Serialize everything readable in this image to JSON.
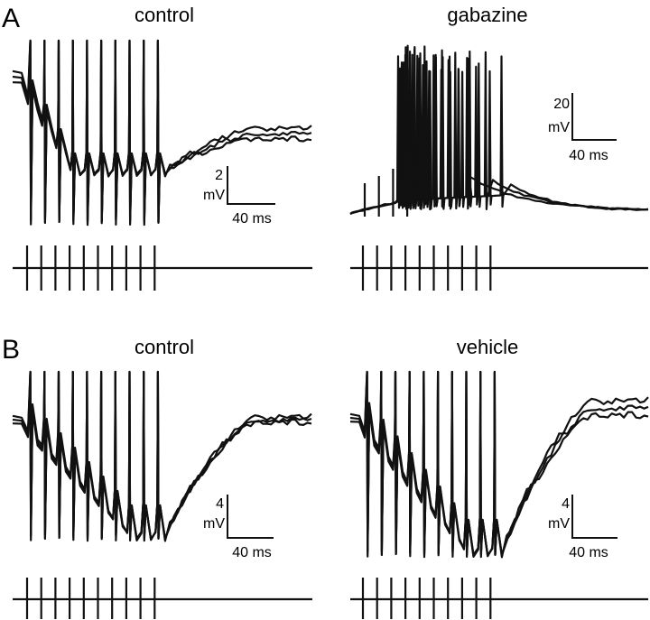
{
  "panels": [
    {
      "letter": "A",
      "conditions": [
        {
          "title": "control",
          "scale_v": "2",
          "scale_unit": "mV",
          "scale_t": "40 ms"
        },
        {
          "title": "gabazine",
          "scale_v": "20",
          "scale_unit": "mV",
          "scale_t": "40 ms"
        }
      ]
    },
    {
      "letter": "B",
      "conditions": [
        {
          "title": "control",
          "scale_v": "4",
          "scale_unit": "mV",
          "scale_t": "40 ms"
        },
        {
          "title": "vehicle",
          "scale_v": "4",
          "scale_unit": "mV",
          "scale_t": "40 ms"
        }
      ]
    }
  ],
  "stimulus": {
    "pulse_count": 10
  },
  "colors": {
    "trace": "#111111",
    "background": "#ffffff"
  }
}
